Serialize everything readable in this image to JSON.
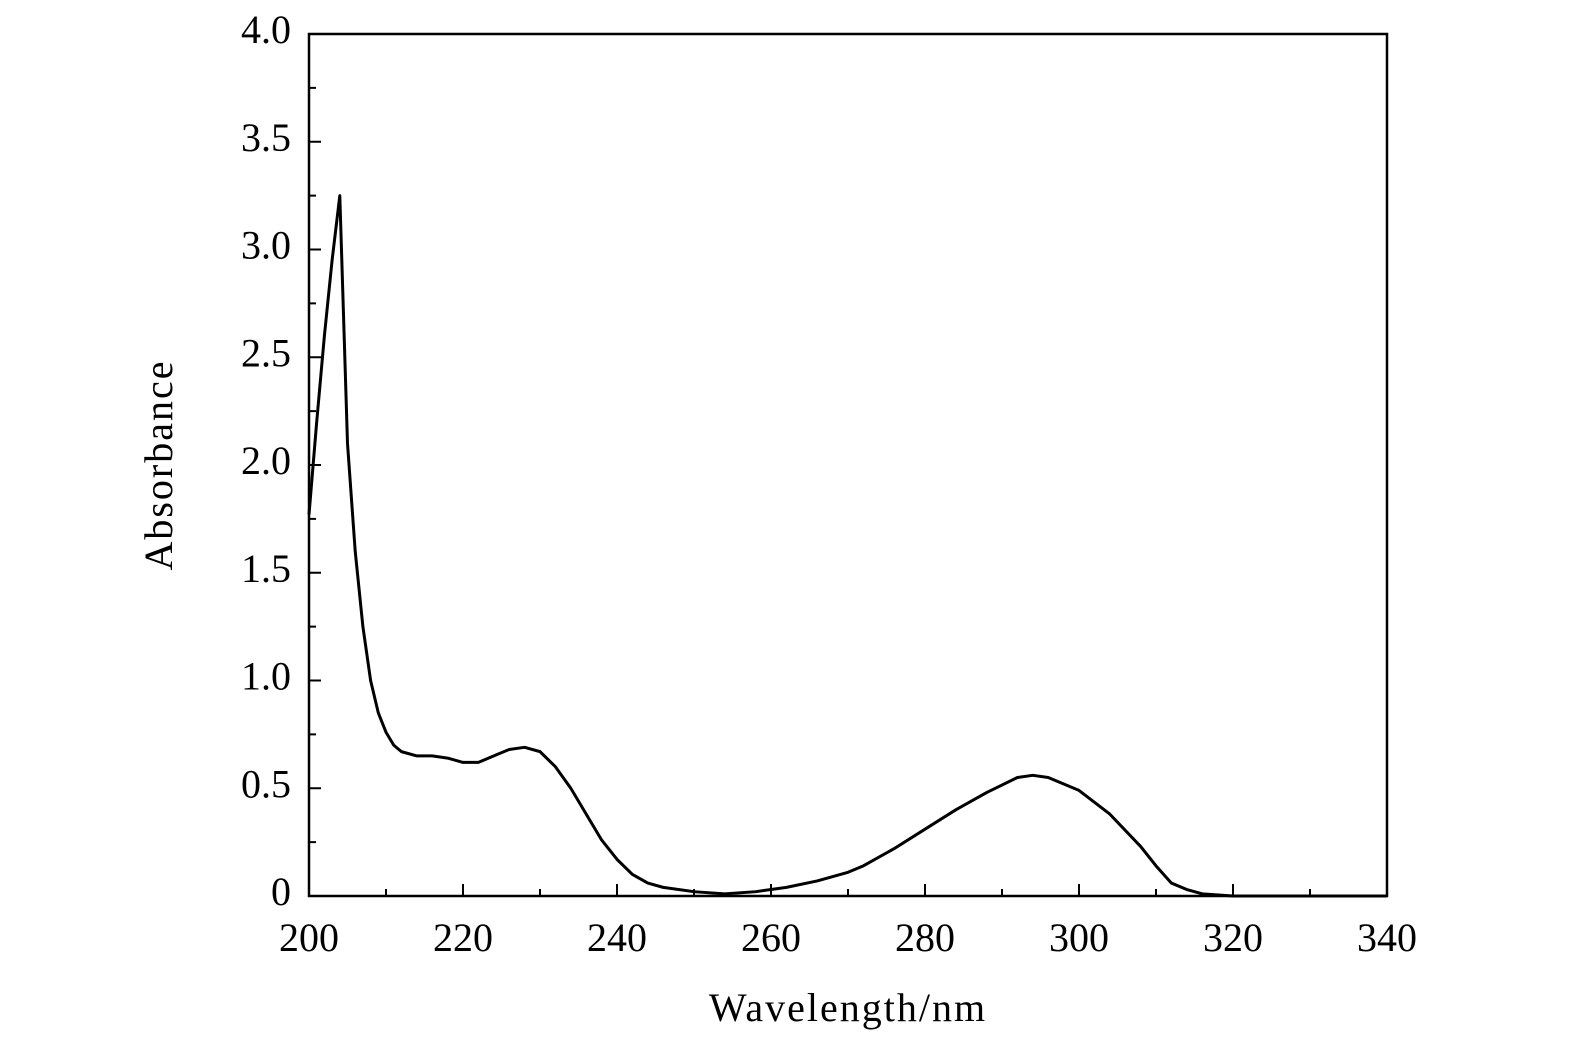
{
  "chart_data": {
    "type": "line",
    "x_label": "Wavelength/nm",
    "y_label": "Absorbance",
    "xlim": [
      200,
      340
    ],
    "xticks": [
      200,
      220,
      240,
      260,
      280,
      300,
      320,
      340
    ],
    "ylim": [
      0,
      4
    ],
    "yticks": [
      0,
      0.5,
      {
        "value": 1,
        "label": "1.0"
      },
      1.5,
      {
        "value": 2,
        "label": "2.0"
      },
      2.5,
      {
        "value": 3,
        "label": "3.0"
      },
      3.5,
      {
        "value": 4,
        "label": "4.0"
      }
    ],
    "color": "#000000",
    "grid": false,
    "x": [
      200,
      201,
      202,
      203,
      204,
      205,
      206,
      207,
      208,
      209,
      210,
      211,
      212,
      214,
      216,
      218,
      220,
      222,
      224,
      226,
      228,
      230,
      232,
      234,
      236,
      238,
      240,
      242,
      244,
      246,
      250,
      254,
      258,
      262,
      266,
      270,
      272,
      276,
      280,
      284,
      288,
      292,
      294,
      296,
      300,
      304,
      308,
      310,
      312,
      314,
      316,
      320,
      330,
      340
    ],
    "values": [
      1.77,
      2.2,
      2.6,
      2.95,
      3.25,
      2.1,
      1.6,
      1.25,
      1.0,
      0.85,
      0.76,
      0.7,
      0.67,
      0.65,
      0.65,
      0.64,
      0.62,
      0.62,
      0.65,
      0.68,
      0.69,
      0.67,
      0.6,
      0.5,
      0.38,
      0.26,
      0.17,
      0.1,
      0.06,
      0.04,
      0.02,
      0.01,
      0.02,
      0.04,
      0.07,
      0.11,
      0.14,
      0.22,
      0.31,
      0.4,
      0.48,
      0.55,
      0.56,
      0.55,
      0.49,
      0.38,
      0.23,
      0.14,
      0.06,
      0.03,
      0.01,
      0,
      0,
      0
    ]
  }
}
